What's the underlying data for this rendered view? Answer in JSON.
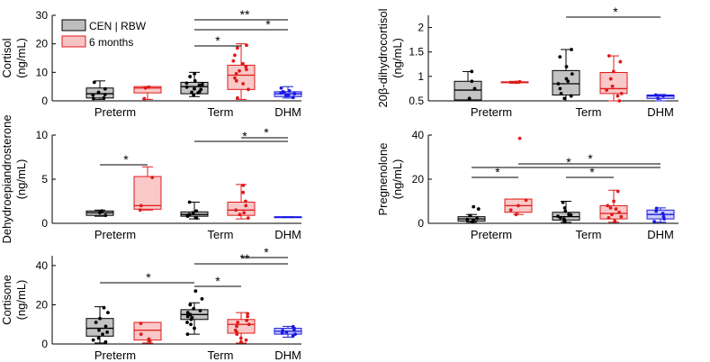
{
  "chart_data": [
    {
      "type": "box",
      "ylabel_lines": [
        "Cortisol",
        "(ng/mL)"
      ],
      "ylim": [
        0,
        30
      ],
      "yticks": [
        "0",
        "10",
        "20",
        "30"
      ],
      "categories": [
        "Preterm",
        "Term",
        "DHM"
      ],
      "legend": [
        {
          "name": "CEN | RBW",
          "color": "#000000",
          "fill": "#bdbdbd"
        },
        {
          "name": "6 months",
          "color": "#e01a1a",
          "fill": "#f7c4c4"
        }
      ],
      "boxes": [
        {
          "series": "CEN | RBW",
          "category": "Preterm",
          "min": 0.5,
          "q1": 1.0,
          "median": 2.5,
          "q3": 4.5,
          "max": 7.0,
          "points": [
            1,
            2,
            3,
            4.2,
            6.5,
            2.2,
            0.8
          ]
        },
        {
          "series": "6 months",
          "category": "Preterm",
          "min": 0.5,
          "q1": 2.8,
          "median": 4.5,
          "q3": 5.0,
          "max": 5.0,
          "points": [
            4.8,
            4.5,
            0.8
          ]
        },
        {
          "series": "CEN | RBW",
          "category": "Term",
          "min": 1.5,
          "q1": 2.5,
          "median": 5.0,
          "q3": 6.5,
          "max": 10.0,
          "points": [
            2,
            3,
            4,
            4.8,
            5.5,
            6.2,
            7,
            8.5,
            9.5,
            3.2,
            2.8,
            5.8,
            4.2
          ]
        },
        {
          "series": "6 months",
          "category": "Term",
          "min": 0.5,
          "q1": 4.0,
          "median": 9.0,
          "q3": 12.5,
          "max": 20.0,
          "points": [
            1,
            4,
            6,
            8,
            9.5,
            11,
            12,
            14,
            16,
            18.5,
            19.5,
            7,
            10.5,
            13
          ]
        },
        {
          "series": "DHM",
          "category": "DHM",
          "min": 1.0,
          "q1": 1.5,
          "median": 2.5,
          "q3": 3.2,
          "max": 5.0,
          "points": [
            1.2,
            2,
            2.5,
            3,
            3.2,
            4.5,
            1.8,
            2.8,
            3.5
          ]
        }
      ],
      "significance": [
        {
          "from": "Term",
          "to": "DHM",
          "label": "**"
        },
        {
          "from": "Term",
          "to": "DHM",
          "label": "*"
        },
        {
          "from": "Term",
          "to": "Term6",
          "label": "*"
        }
      ]
    },
    {
      "type": "box",
      "ylabel_lines": [
        "20β-dihydrocortisol",
        "(ng/mL)"
      ],
      "ylim": [
        0.5,
        2.25
      ],
      "yticks": [
        "0.5",
        "1",
        "1.5",
        "2"
      ],
      "categories": [
        "Preterm",
        "Term",
        "DHM"
      ],
      "boxes": [
        {
          "series": "CEN | RBW",
          "category": "Preterm",
          "min": 0.5,
          "q1": 0.52,
          "median": 0.72,
          "q3": 0.9,
          "max": 1.1,
          "points": [
            0.55,
            0.75,
            0.9,
            1.1
          ]
        },
        {
          "series": "6 months",
          "category": "Preterm",
          "min": 0.86,
          "q1": 0.87,
          "median": 0.88,
          "q3": 0.89,
          "max": 0.9,
          "points": [
            0.88,
            0.89
          ]
        },
        {
          "series": "CEN | RBW",
          "category": "Term",
          "min": 0.5,
          "q1": 0.62,
          "median": 0.85,
          "q3": 1.12,
          "max": 1.55,
          "points": [
            0.55,
            0.65,
            0.75,
            0.85,
            0.95,
            1.05,
            1.2,
            1.4,
            1.55,
            0.6,
            0.9
          ]
        },
        {
          "series": "6 months",
          "category": "Term",
          "min": 0.5,
          "q1": 0.65,
          "median": 0.75,
          "q3": 1.08,
          "max": 1.42,
          "points": [
            0.5,
            0.6,
            0.72,
            0.8,
            0.95,
            1.1,
            1.3,
            1.42,
            0.65
          ]
        },
        {
          "series": "DHM",
          "category": "DHM",
          "min": 0.5,
          "q1": 0.55,
          "median": 0.6,
          "q3": 0.62,
          "max": 0.63,
          "points": [
            0.55,
            0.6,
            0.62
          ]
        }
      ],
      "significance": [
        {
          "from": "Term",
          "to": "DHM",
          "label": "*"
        }
      ]
    },
    {
      "type": "box",
      "ylabel_lines": [
        "Dehydroepiandrosterone",
        "(ng/mL)"
      ],
      "ylim": [
        0,
        10
      ],
      "yticks": [
        "0",
        "5",
        "10"
      ],
      "categories": [
        "Preterm",
        "Term",
        "DHM"
      ],
      "boxes": [
        {
          "series": "CEN | RBW",
          "category": "Preterm",
          "min": 0.8,
          "q1": 0.9,
          "median": 1.2,
          "q3": 1.4,
          "max": 1.5,
          "points": [
            0.9,
            1.2,
            1.4
          ]
        },
        {
          "series": "6 months",
          "category": "Preterm",
          "min": 1.5,
          "q1": 1.6,
          "median": 2.0,
          "q3": 5.3,
          "max": 6.4,
          "points": [
            1.5,
            2.0,
            5.2
          ]
        },
        {
          "series": "CEN | RBW",
          "category": "Term",
          "min": 0.5,
          "q1": 0.8,
          "median": 1.0,
          "q3": 1.3,
          "max": 2.4,
          "points": [
            0.6,
            0.8,
            1.0,
            1.2,
            1.4,
            2.4,
            0.9
          ]
        },
        {
          "series": "6 months",
          "category": "Term",
          "min": 0.5,
          "q1": 0.9,
          "median": 1.5,
          "q3": 2.4,
          "max": 4.4,
          "points": [
            0.6,
            1.0,
            1.5,
            2.0,
            2.5,
            3.5,
            4.3,
            1.2
          ]
        },
        {
          "series": "DHM",
          "category": "DHM",
          "min": 0.65,
          "q1": 0.7,
          "median": 0.72,
          "q3": 0.74,
          "max": 0.75,
          "points": []
        }
      ],
      "significance": [
        {
          "from": "Preterm",
          "to": "Preterm6",
          "label": "*"
        },
        {
          "from": "Term",
          "to": "DHM",
          "label": "*"
        },
        {
          "from": "Term",
          "to": "DHM",
          "label": "*"
        }
      ]
    },
    {
      "type": "box",
      "ylabel_lines": [
        "Pregnenolone",
        "(ng/mL)"
      ],
      "ylim": [
        0,
        40
      ],
      "yticks": [
        "0",
        "20",
        "40"
      ],
      "categories": [
        "Preterm",
        "Term",
        "DHM"
      ],
      "boxes": [
        {
          "series": "CEN | RBW",
          "category": "Preterm",
          "min": 0.5,
          "q1": 1.0,
          "median": 2.0,
          "q3": 3.0,
          "max": 4.0,
          "points": [
            0.8,
            1.5,
            2.2,
            3.5,
            6.5,
            7.5,
            1.8
          ]
        },
        {
          "series": "6 months",
          "category": "Preterm",
          "min": 4.0,
          "q1": 5.0,
          "median": 8.0,
          "q3": 11.0,
          "max": 11.0,
          "points": [
            4.0,
            6.0,
            8.0,
            10.5,
            38.5
          ]
        },
        {
          "series": "CEN | RBW",
          "category": "Term",
          "min": 0.5,
          "q1": 1.5,
          "median": 3.0,
          "q3": 5.0,
          "max": 10.0,
          "points": [
            0.8,
            1.5,
            2.5,
            3.2,
            4.0,
            5.5,
            7.0,
            9.5,
            2.0,
            3.8
          ]
        },
        {
          "series": "6 months",
          "category": "Term",
          "min": 0.5,
          "q1": 2.0,
          "median": 4.5,
          "q3": 8.0,
          "max": 15.0,
          "points": [
            1.0,
            2.5,
            4.0,
            5.0,
            6.5,
            8.0,
            10.0,
            14.5,
            3.0,
            7.0
          ]
        },
        {
          "series": "DHM",
          "category": "DHM",
          "min": 0.5,
          "q1": 2.0,
          "median": 4.0,
          "q3": 6.0,
          "max": 7.0,
          "points": [
            0.8,
            2.0,
            3.0,
            4.5,
            5.5,
            6.8
          ]
        }
      ],
      "significance": [
        {
          "from": "Preterm",
          "to": "DHM",
          "label": "*"
        },
        {
          "from": "Preterm",
          "to": "Term6",
          "label": "*"
        },
        {
          "from": "Preterm",
          "to": "Preterm6",
          "label": "*"
        },
        {
          "from": "Term",
          "to": "Term6",
          "label": "*"
        }
      ]
    },
    {
      "type": "box",
      "ylabel_lines": [
        "Cortisone",
        "(ng/mL)"
      ],
      "ylim": [
        0,
        45
      ],
      "yticks": [
        "0",
        "20",
        "40"
      ],
      "categories": [
        "Preterm",
        "Term",
        "DHM"
      ],
      "boxes": [
        {
          "series": "CEN | RBW",
          "category": "Preterm",
          "min": 0.5,
          "q1": 4.0,
          "median": 8.0,
          "q3": 13.0,
          "max": 19.0,
          "points": [
            1,
            3,
            5,
            7,
            9,
            11,
            13,
            16,
            18.5,
            2,
            6
          ]
        },
        {
          "series": "6 months",
          "category": "Preterm",
          "min": 0.5,
          "q1": 2.0,
          "median": 7.0,
          "q3": 11.0,
          "max": 11.0,
          "points": [
            1.5,
            5.0,
            10.5,
            2.5
          ]
        },
        {
          "series": "CEN | RBW",
          "category": "Term",
          "min": 5.0,
          "q1": 12.5,
          "median": 15.0,
          "q3": 17.5,
          "max": 21.0,
          "points": [
            5,
            8,
            11,
            12.5,
            14,
            15,
            16,
            17,
            18,
            20,
            23,
            27,
            13.5,
            10
          ]
        },
        {
          "series": "6 months",
          "category": "Term",
          "min": 0.5,
          "q1": 5.5,
          "median": 10.0,
          "q3": 12.5,
          "max": 16.0,
          "points": [
            1,
            3,
            5,
            7,
            9,
            10,
            11,
            12,
            14,
            15.5,
            2,
            6
          ]
        },
        {
          "series": "DHM",
          "category": "DHM",
          "min": 3.5,
          "q1": 5.0,
          "median": 6.5,
          "q3": 8.0,
          "max": 9.0,
          "points": [
            4,
            5,
            6,
            7,
            8,
            8.8,
            5.5,
            6.8
          ]
        }
      ],
      "significance": [
        {
          "from": "Term",
          "to": "DHM",
          "label": "*"
        },
        {
          "from": "Term",
          "to": "DHM",
          "label": "**"
        },
        {
          "from": "Preterm",
          "to": "Term",
          "label": "*"
        },
        {
          "from": "Term",
          "to": "Term6",
          "label": "*"
        }
      ]
    }
  ]
}
